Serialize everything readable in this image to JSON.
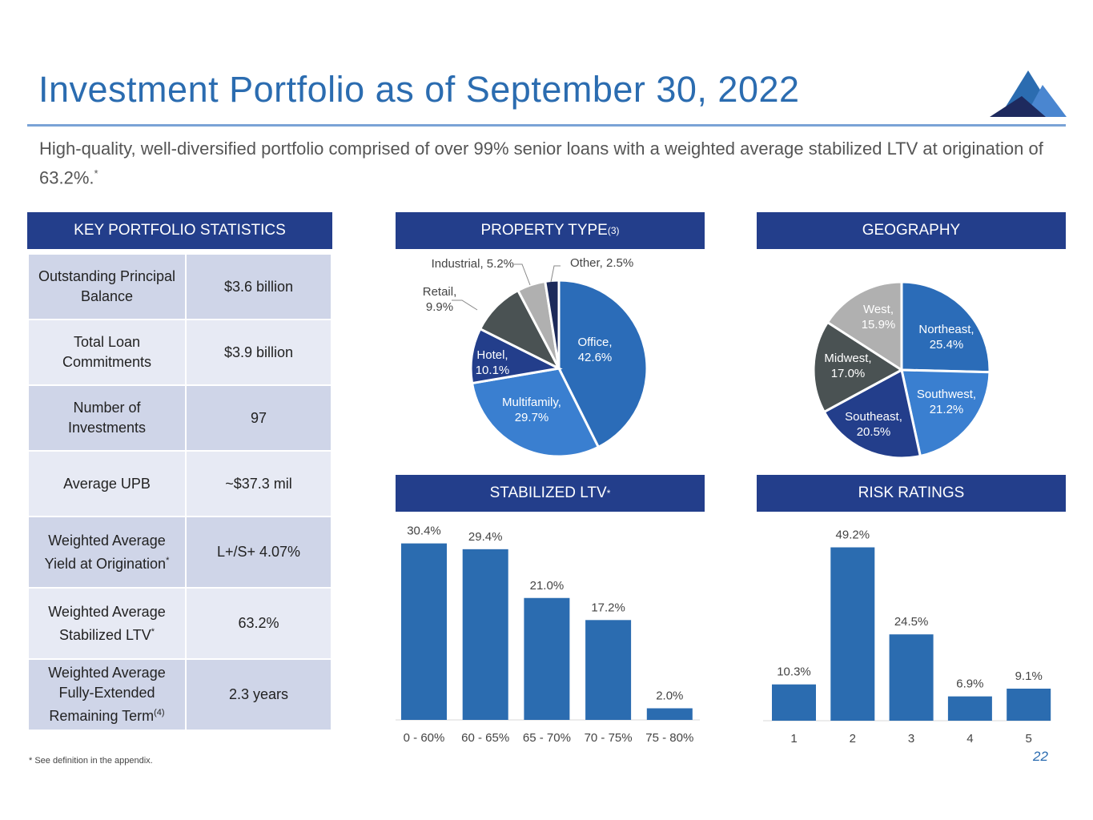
{
  "title": "Investment Portfolio as of September 30, 2022",
  "subtitle": "High-quality, well-diversified portfolio comprised of over 99% senior loans with a weighted average stabilized LTV at origination of 63.2%.",
  "subtitle_mark": "*",
  "stats": {
    "header": "KEY PORTFOLIO STATISTICS",
    "rows": [
      {
        "label": "Outstanding Principal Balance",
        "value": "$3.6 billion"
      },
      {
        "label": "Total Loan Commitments",
        "value": "$3.9 billion"
      },
      {
        "label": "Number of Investments",
        "value": "97"
      },
      {
        "label": "Average UPB",
        "value": "~$37.3 mil"
      },
      {
        "label": "Weighted Average Yield at Origination",
        "mark": "*",
        "value": "L+/S+ 4.07%"
      },
      {
        "label": "Weighted Average Stabilized LTV",
        "mark": "*",
        "value": "63.2%"
      },
      {
        "label": "Weighted Average Fully-Extended Remaining Term",
        "mark": "(4)",
        "value": "2.3 years"
      }
    ]
  },
  "headers": {
    "property_type": "PROPERTY TYPE",
    "property_type_mark": "(3)",
    "geography": "GEOGRAPHY",
    "ltv": "STABILIZED LTV",
    "ltv_mark": "*",
    "risk": "RISK RATINGS"
  },
  "footnote": "* See definition in the appendix.",
  "page_number": "22",
  "colors": {
    "accent": "#2b6cb0",
    "header_bg": "#233e8b",
    "bar": "#2b6cb0"
  },
  "chart_data": [
    {
      "type": "pie",
      "id": "property",
      "slices": [
        {
          "label": "Office,",
          "pct": "42.6%",
          "value": 42.6,
          "color": "#2b6cb8",
          "label_pos": "inside"
        },
        {
          "label": "Multifamily,",
          "pct": "29.7%",
          "value": 29.7,
          "color": "#3a7fd0",
          "label_pos": "inside"
        },
        {
          "label": "Hotel,",
          "pct": "10.1%",
          "value": 10.1,
          "color": "#233e8b",
          "label_pos": "inside"
        },
        {
          "label": "Retail,",
          "pct": "9.9%",
          "value": 9.9,
          "color": "#4a5253",
          "label_pos": "outside"
        },
        {
          "label": "Industrial, 5.2%",
          "pct": "",
          "value": 5.2,
          "color": "#b0b0b0",
          "label_pos": "outside"
        },
        {
          "label": "Other, 2.5%",
          "pct": "",
          "value": 2.5,
          "color": "#1c2a5a",
          "label_pos": "outside"
        }
      ]
    },
    {
      "type": "pie",
      "id": "geography",
      "slices": [
        {
          "label": "Northeast,",
          "pct": "25.4%",
          "value": 25.4,
          "color": "#2b6cb8"
        },
        {
          "label": "Southwest,",
          "pct": "21.2%",
          "value": 21.2,
          "color": "#3a7fd0"
        },
        {
          "label": "Southeast,",
          "pct": "20.5%",
          "value": 20.5,
          "color": "#233e8b"
        },
        {
          "label": "Midwest,",
          "pct": "17.0%",
          "value": 17.0,
          "color": "#4a5253"
        },
        {
          "label": "West,",
          "pct": "15.9%",
          "value": 15.9,
          "color": "#b0b0b0"
        }
      ]
    },
    {
      "type": "bar",
      "id": "ltv",
      "categories": [
        "0 - 60%",
        "60 - 65%",
        "65 - 70%",
        "70 - 75%",
        "75 - 80%"
      ],
      "values": [
        30.4,
        29.4,
        21.0,
        17.2,
        2.0
      ],
      "labels": [
        "30.4%",
        "29.4%",
        "21.0%",
        "17.2%",
        "2.0%"
      ]
    },
    {
      "type": "bar",
      "id": "risk",
      "categories": [
        "1",
        "2",
        "3",
        "4",
        "5"
      ],
      "values": [
        10.3,
        49.2,
        24.5,
        6.9,
        9.1
      ],
      "labels": [
        "10.3%",
        "49.2%",
        "24.5%",
        "6.9%",
        "9.1%"
      ]
    }
  ]
}
